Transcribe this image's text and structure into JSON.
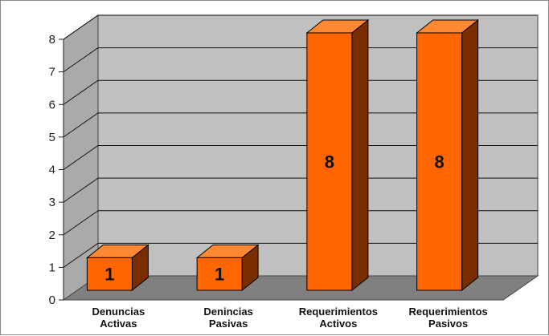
{
  "chart_data": {
    "type": "bar",
    "categories": [
      [
        "Denuncias",
        "Activas"
      ],
      [
        "Denincias",
        "Pasivas"
      ],
      [
        "Requerimientos",
        "Activos"
      ],
      [
        "Requerimientos",
        "Pasivos"
      ]
    ],
    "values": [
      1,
      1,
      8,
      8
    ],
    "data_labels": [
      "1",
      "1",
      "8",
      "8"
    ],
    "ylim": [
      0,
      8
    ],
    "yticks": [
      0,
      1,
      2,
      3,
      4,
      5,
      6,
      7,
      8
    ],
    "grid": true,
    "legend": "none",
    "style": "3d-column",
    "colors": {
      "bar_front": "#ff6600",
      "bar_top": "#ff8833",
      "bar_side": "#7a2e00",
      "back_wall": "#c0c0c0",
      "side_wall": "#aaaaaa",
      "floor": "#808080",
      "grid": "#111111"
    }
  }
}
